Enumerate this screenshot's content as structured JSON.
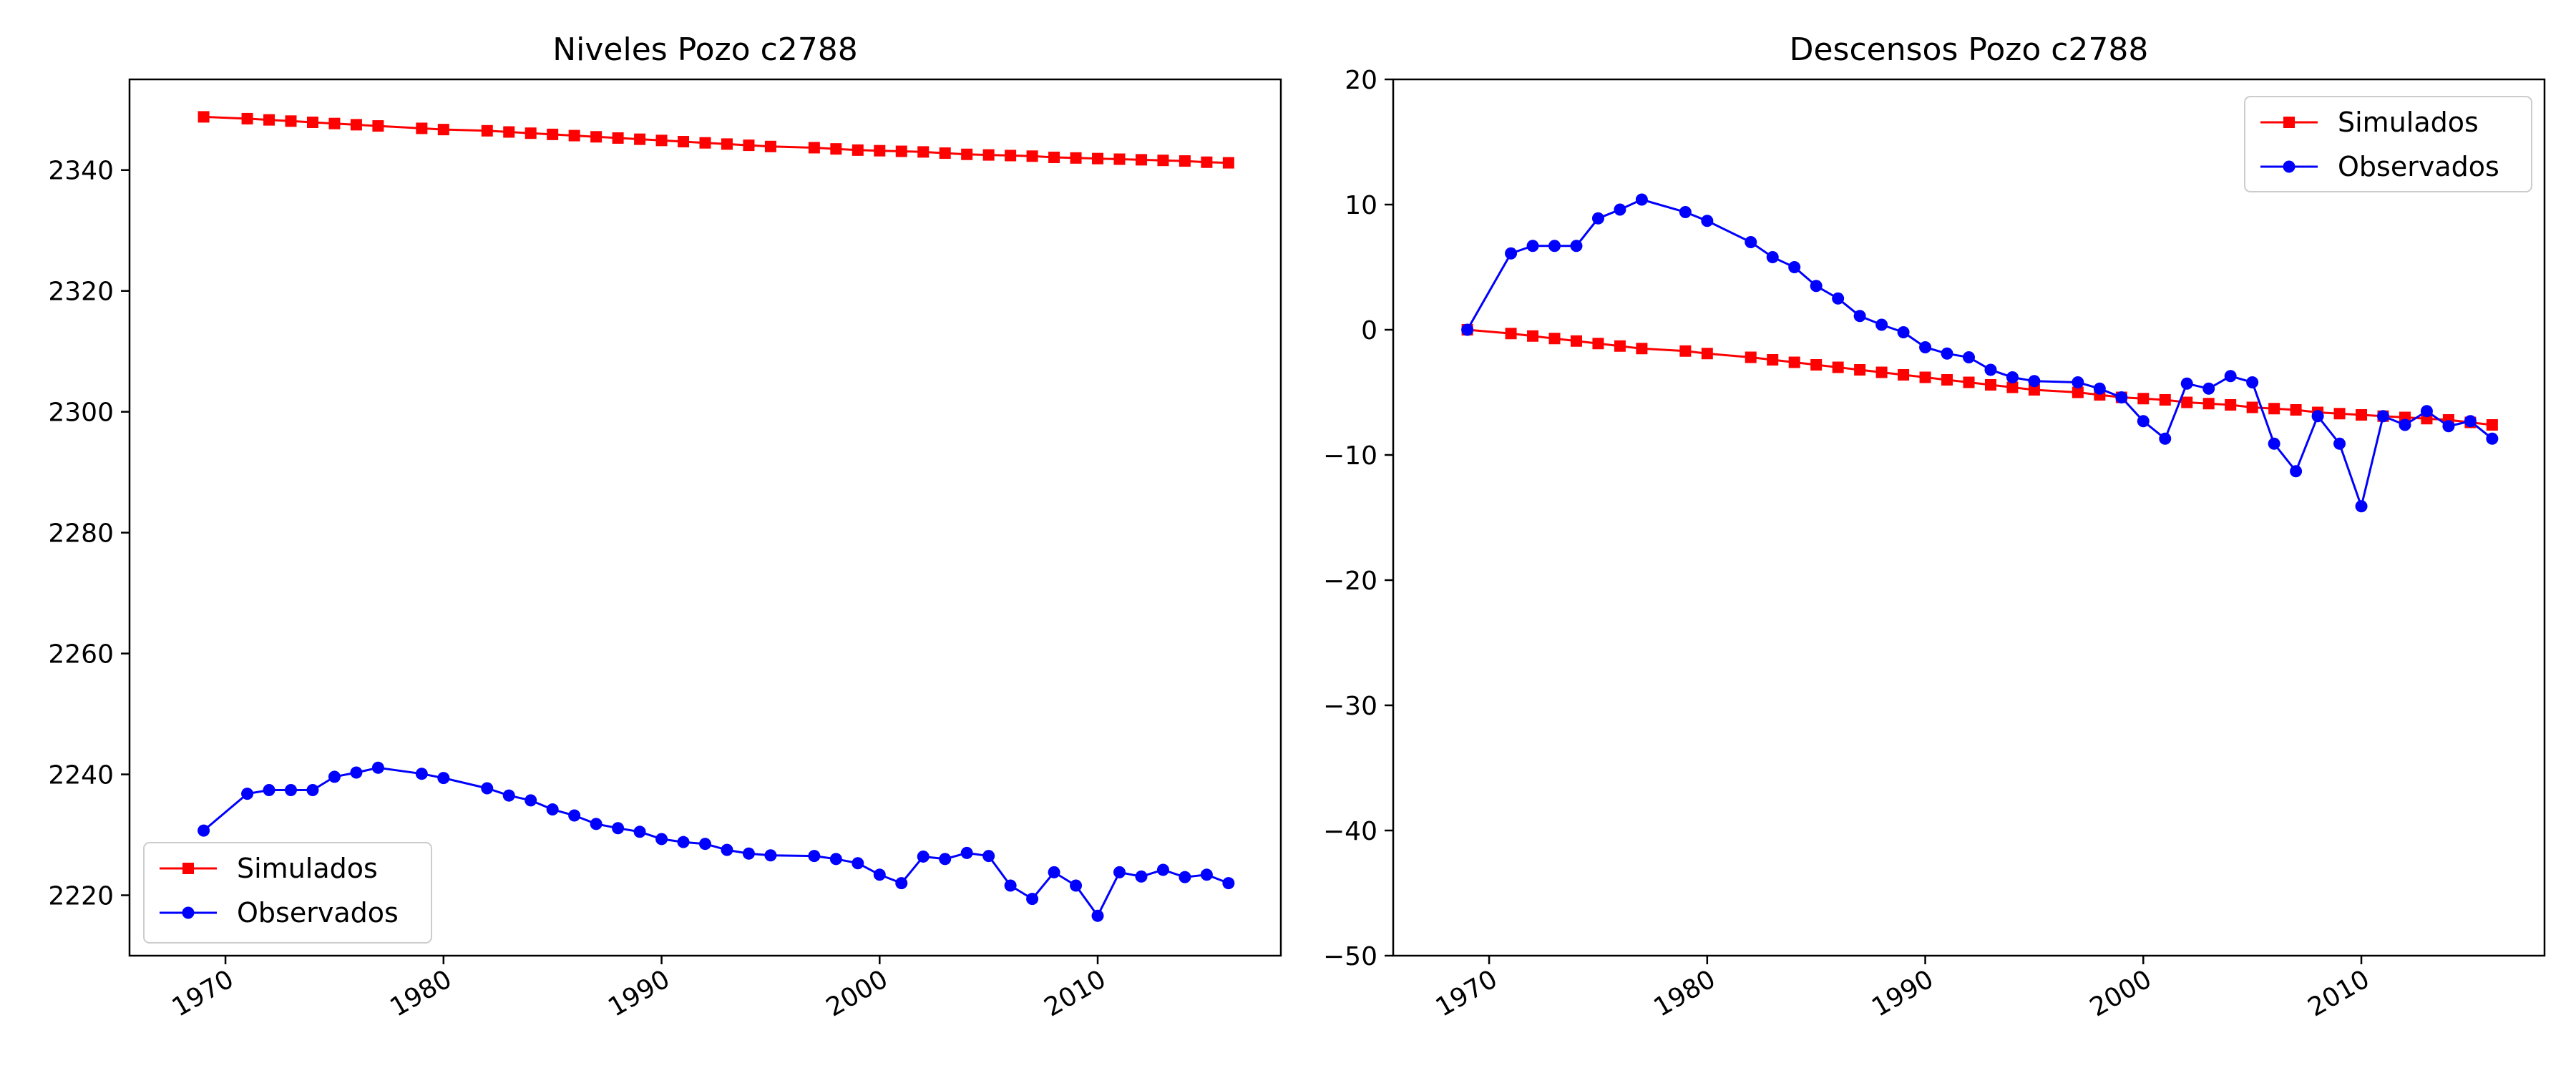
{
  "chart_data": [
    {
      "type": "line",
      "title": "Niveles Pozo c2788",
      "xlabel": "",
      "ylabel": "",
      "xlim": [
        1965.6,
        2018.4
      ],
      "ylim": [
        2210,
        2355
      ],
      "xticks": [
        1970,
        1980,
        1990,
        2000,
        2010
      ],
      "yticks": [
        2220,
        2240,
        2260,
        2280,
        2300,
        2320,
        2340
      ],
      "legend": "lower-left",
      "grid": false,
      "series": [
        {
          "name": "Simulados",
          "color": "#ff0000",
          "marker": "square",
          "x": [
            1969,
            1971,
            1972,
            1973,
            1974,
            1975,
            1976,
            1977,
            1979,
            1980,
            1982,
            1983,
            1984,
            1985,
            1986,
            1987,
            1988,
            1989,
            1990,
            1991,
            1992,
            1993,
            1994,
            1995,
            1997,
            1998,
            1999,
            2000,
            2001,
            2002,
            2003,
            2004,
            2005,
            2006,
            2007,
            2008,
            2009,
            2010,
            2011,
            2012,
            2013,
            2014,
            2015,
            2016
          ],
          "y": [
            2348.8,
            2348.5,
            2348.3,
            2348.1,
            2347.9,
            2347.7,
            2347.5,
            2347.3,
            2346.9,
            2346.7,
            2346.5,
            2346.3,
            2346.1,
            2345.9,
            2345.7,
            2345.5,
            2345.3,
            2345.1,
            2344.9,
            2344.7,
            2344.5,
            2344.3,
            2344.1,
            2343.9,
            2343.7,
            2343.5,
            2343.3,
            2343.2,
            2343.1,
            2343.0,
            2342.8,
            2342.6,
            2342.5,
            2342.4,
            2342.3,
            2342.1,
            2342.0,
            2341.9,
            2341.8,
            2341.7,
            2341.6,
            2341.5,
            2341.3,
            2341.2
          ]
        },
        {
          "name": "Observados",
          "color": "#0000ff",
          "marker": "circle",
          "x": [
            1969,
            1971,
            1972,
            1973,
            1974,
            1975,
            1976,
            1977,
            1979,
            1980,
            1982,
            1983,
            1984,
            1985,
            1986,
            1987,
            1988,
            1989,
            1990,
            1991,
            1992,
            1993,
            1994,
            1995,
            1997,
            1998,
            1999,
            2000,
            2001,
            2002,
            2003,
            2004,
            2005,
            2006,
            2007,
            2008,
            2009,
            2010,
            2011,
            2012,
            2013,
            2014,
            2015,
            2016
          ],
          "y": [
            2230.7,
            2236.8,
            2237.4,
            2237.4,
            2237.4,
            2239.6,
            2240.3,
            2241.1,
            2240.1,
            2239.4,
            2237.7,
            2236.5,
            2235.7,
            2234.2,
            2233.2,
            2231.8,
            2231.1,
            2230.5,
            2229.3,
            2228.8,
            2228.5,
            2227.5,
            2226.9,
            2226.6,
            2226.5,
            2226.0,
            2225.3,
            2223.4,
            2222.0,
            2226.4,
            2226.0,
            2227.0,
            2226.5,
            2221.6,
            2219.4,
            2223.8,
            2221.6,
            2216.6,
            2223.8,
            2223.1,
            2224.2,
            2223.0,
            2223.4,
            2222.0
          ]
        }
      ]
    },
    {
      "type": "line",
      "title": "Descensos Pozo c2788",
      "xlabel": "",
      "ylabel": "",
      "xlim": [
        1965.6,
        2018.4
      ],
      "ylim": [
        -50,
        20
      ],
      "xticks": [
        1970,
        1980,
        1990,
        2000,
        2010
      ],
      "yticks": [
        -50,
        -40,
        -30,
        -20,
        -10,
        0,
        10,
        20
      ],
      "legend": "upper-right",
      "grid": false,
      "series": [
        {
          "name": "Simulados",
          "color": "#ff0000",
          "marker": "square",
          "x": [
            1969,
            1971,
            1972,
            1973,
            1974,
            1975,
            1976,
            1977,
            1979,
            1980,
            1982,
            1983,
            1984,
            1985,
            1986,
            1987,
            1988,
            1989,
            1990,
            1991,
            1992,
            1993,
            1994,
            1995,
            1997,
            1998,
            1999,
            2000,
            2001,
            2002,
            2003,
            2004,
            2005,
            2006,
            2007,
            2008,
            2009,
            2010,
            2011,
            2012,
            2013,
            2014,
            2015,
            2016
          ],
          "y": [
            0,
            -0.3,
            -0.5,
            -0.7,
            -0.9,
            -1.1,
            -1.3,
            -1.5,
            -1.7,
            -1.9,
            -2.2,
            -2.4,
            -2.6,
            -2.8,
            -3.0,
            -3.2,
            -3.4,
            -3.6,
            -3.8,
            -4.0,
            -4.2,
            -4.4,
            -4.6,
            -4.8,
            -5.0,
            -5.2,
            -5.4,
            -5.5,
            -5.6,
            -5.8,
            -5.9,
            -6.0,
            -6.2,
            -6.3,
            -6.4,
            -6.6,
            -6.7,
            -6.8,
            -6.9,
            -7.0,
            -7.1,
            -7.2,
            -7.4,
            -7.6
          ]
        },
        {
          "name": "Observados",
          "color": "#0000ff",
          "marker": "circle",
          "x": [
            1969,
            1971,
            1972,
            1973,
            1974,
            1975,
            1976,
            1977,
            1979,
            1980,
            1982,
            1983,
            1984,
            1985,
            1986,
            1987,
            1988,
            1989,
            1990,
            1991,
            1992,
            1993,
            1994,
            1995,
            1997,
            1998,
            1999,
            2000,
            2001,
            2002,
            2003,
            2004,
            2005,
            2006,
            2007,
            2008,
            2009,
            2010,
            2011,
            2012,
            2013,
            2014,
            2015,
            2016
          ],
          "y": [
            0,
            6.1,
            6.7,
            6.7,
            6.7,
            8.9,
            9.6,
            10.4,
            9.4,
            8.7,
            7.0,
            5.8,
            5.0,
            3.5,
            2.5,
            1.1,
            0.4,
            -0.2,
            -1.4,
            -1.9,
            -2.2,
            -3.2,
            -3.8,
            -4.1,
            -4.2,
            -4.7,
            -5.4,
            -7.3,
            -8.7,
            -4.3,
            -4.7,
            -3.7,
            -4.2,
            -9.1,
            -11.3,
            -6.9,
            -9.1,
            -14.1,
            -6.9,
            -7.6,
            -6.5,
            -7.7,
            -7.3,
            -8.7
          ]
        }
      ]
    }
  ]
}
